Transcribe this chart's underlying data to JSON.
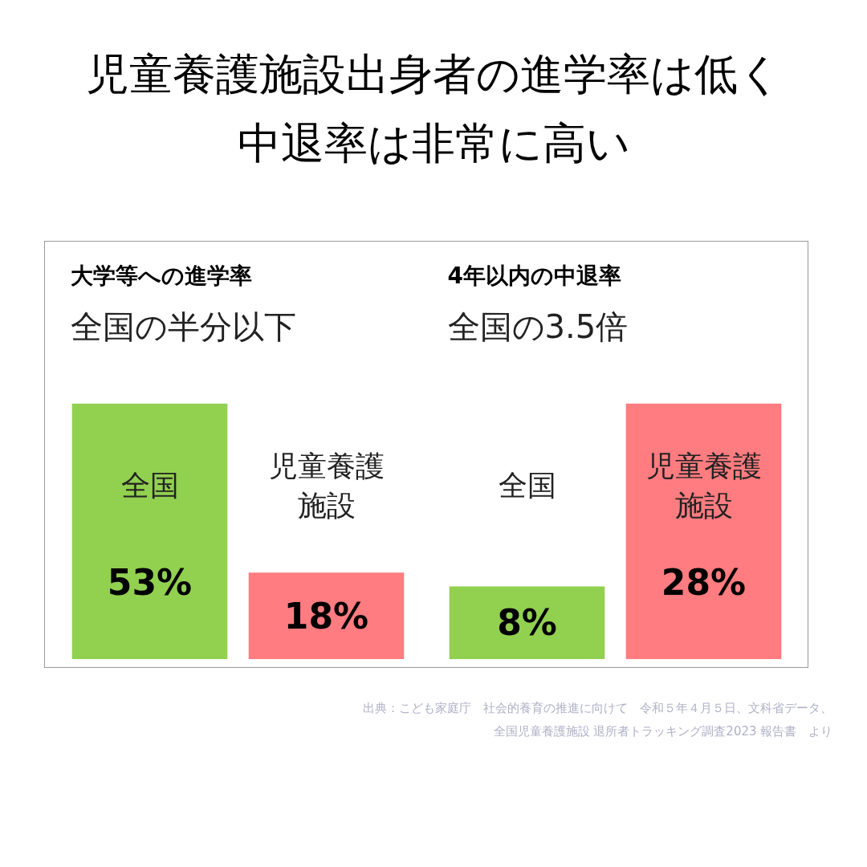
{
  "chart_data": [
    {
      "type": "other",
      "title": "児童養護施設出身者の進学率は低く中退率は非常に高い"
    },
    {
      "type": "bar",
      "title": "大学等への進学率",
      "subtitle": "全国の半分以下",
      "categories": [
        "全国",
        "児童養護施設"
      ],
      "values": [
        53,
        18
      ],
      "colors": [
        "#92d050",
        "#ff7c80"
      ],
      "value_labels": [
        "53%",
        "18%"
      ]
    },
    {
      "type": "bar",
      "title": "4年以内の中退率",
      "subtitle": "全国の3.5倍",
      "categories": [
        "全国",
        "児童養護施設"
      ],
      "values": [
        8,
        28
      ],
      "colors": [
        "#92d050",
        "#ff7c80"
      ],
      "value_labels": [
        "8%",
        "28%"
      ],
      "annotations": [
        "出典：こども家庭庁　社会的養育の推進に向けて　令和５年４月５日、文科省データ、全国児童養護施設 退所者トラッキング調査2023 報告書　より"
      ]
    }
  ]
}
